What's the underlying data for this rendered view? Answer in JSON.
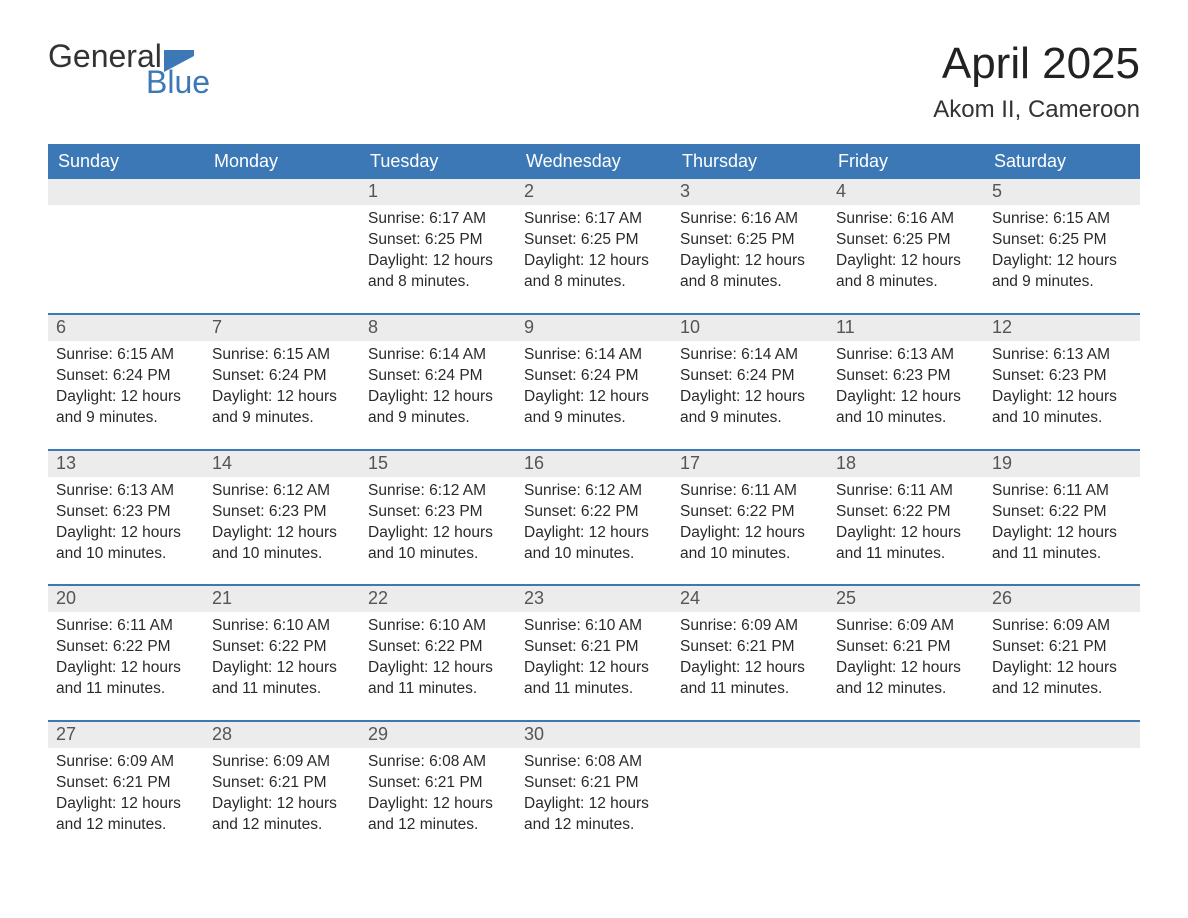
{
  "brand": {
    "word1": "General",
    "word2": "Blue",
    "text_color": "#333333",
    "accent_color": "#3b78b5"
  },
  "title": {
    "month": "April 2025",
    "location": "Akom II, Cameroon",
    "title_fontsize": 44,
    "location_fontsize": 24
  },
  "colors": {
    "header_bg": "#3b78b5",
    "header_text": "#ffffff",
    "daynum_bg": "#ececec",
    "daynum_text": "#555555",
    "body_text": "#2a2a2a",
    "row_border": "#3b78b5",
    "page_bg": "#ffffff"
  },
  "day_headers": [
    "Sunday",
    "Monday",
    "Tuesday",
    "Wednesday",
    "Thursday",
    "Friday",
    "Saturday"
  ],
  "labels": {
    "sunrise": "Sunrise: ",
    "sunset": "Sunset: ",
    "daylight": "Daylight: "
  },
  "weeks": [
    [
      null,
      null,
      {
        "n": "1",
        "sunrise": "6:17 AM",
        "sunset": "6:25 PM",
        "daylight": "12 hours and 8 minutes."
      },
      {
        "n": "2",
        "sunrise": "6:17 AM",
        "sunset": "6:25 PM",
        "daylight": "12 hours and 8 minutes."
      },
      {
        "n": "3",
        "sunrise": "6:16 AM",
        "sunset": "6:25 PM",
        "daylight": "12 hours and 8 minutes."
      },
      {
        "n": "4",
        "sunrise": "6:16 AM",
        "sunset": "6:25 PM",
        "daylight": "12 hours and 8 minutes."
      },
      {
        "n": "5",
        "sunrise": "6:15 AM",
        "sunset": "6:25 PM",
        "daylight": "12 hours and 9 minutes."
      }
    ],
    [
      {
        "n": "6",
        "sunrise": "6:15 AM",
        "sunset": "6:24 PM",
        "daylight": "12 hours and 9 minutes."
      },
      {
        "n": "7",
        "sunrise": "6:15 AM",
        "sunset": "6:24 PM",
        "daylight": "12 hours and 9 minutes."
      },
      {
        "n": "8",
        "sunrise": "6:14 AM",
        "sunset": "6:24 PM",
        "daylight": "12 hours and 9 minutes."
      },
      {
        "n": "9",
        "sunrise": "6:14 AM",
        "sunset": "6:24 PM",
        "daylight": "12 hours and 9 minutes."
      },
      {
        "n": "10",
        "sunrise": "6:14 AM",
        "sunset": "6:24 PM",
        "daylight": "12 hours and 9 minutes."
      },
      {
        "n": "11",
        "sunrise": "6:13 AM",
        "sunset": "6:23 PM",
        "daylight": "12 hours and 10 minutes."
      },
      {
        "n": "12",
        "sunrise": "6:13 AM",
        "sunset": "6:23 PM",
        "daylight": "12 hours and 10 minutes."
      }
    ],
    [
      {
        "n": "13",
        "sunrise": "6:13 AM",
        "sunset": "6:23 PM",
        "daylight": "12 hours and 10 minutes."
      },
      {
        "n": "14",
        "sunrise": "6:12 AM",
        "sunset": "6:23 PM",
        "daylight": "12 hours and 10 minutes."
      },
      {
        "n": "15",
        "sunrise": "6:12 AM",
        "sunset": "6:23 PM",
        "daylight": "12 hours and 10 minutes."
      },
      {
        "n": "16",
        "sunrise": "6:12 AM",
        "sunset": "6:22 PM",
        "daylight": "12 hours and 10 minutes."
      },
      {
        "n": "17",
        "sunrise": "6:11 AM",
        "sunset": "6:22 PM",
        "daylight": "12 hours and 10 minutes."
      },
      {
        "n": "18",
        "sunrise": "6:11 AM",
        "sunset": "6:22 PM",
        "daylight": "12 hours and 11 minutes."
      },
      {
        "n": "19",
        "sunrise": "6:11 AM",
        "sunset": "6:22 PM",
        "daylight": "12 hours and 11 minutes."
      }
    ],
    [
      {
        "n": "20",
        "sunrise": "6:11 AM",
        "sunset": "6:22 PM",
        "daylight": "12 hours and 11 minutes."
      },
      {
        "n": "21",
        "sunrise": "6:10 AM",
        "sunset": "6:22 PM",
        "daylight": "12 hours and 11 minutes."
      },
      {
        "n": "22",
        "sunrise": "6:10 AM",
        "sunset": "6:22 PM",
        "daylight": "12 hours and 11 minutes."
      },
      {
        "n": "23",
        "sunrise": "6:10 AM",
        "sunset": "6:21 PM",
        "daylight": "12 hours and 11 minutes."
      },
      {
        "n": "24",
        "sunrise": "6:09 AM",
        "sunset": "6:21 PM",
        "daylight": "12 hours and 11 minutes."
      },
      {
        "n": "25",
        "sunrise": "6:09 AM",
        "sunset": "6:21 PM",
        "daylight": "12 hours and 12 minutes."
      },
      {
        "n": "26",
        "sunrise": "6:09 AM",
        "sunset": "6:21 PM",
        "daylight": "12 hours and 12 minutes."
      }
    ],
    [
      {
        "n": "27",
        "sunrise": "6:09 AM",
        "sunset": "6:21 PM",
        "daylight": "12 hours and 12 minutes."
      },
      {
        "n": "28",
        "sunrise": "6:09 AM",
        "sunset": "6:21 PM",
        "daylight": "12 hours and 12 minutes."
      },
      {
        "n": "29",
        "sunrise": "6:08 AM",
        "sunset": "6:21 PM",
        "daylight": "12 hours and 12 minutes."
      },
      {
        "n": "30",
        "sunrise": "6:08 AM",
        "sunset": "6:21 PM",
        "daylight": "12 hours and 12 minutes."
      },
      null,
      null,
      null
    ]
  ]
}
